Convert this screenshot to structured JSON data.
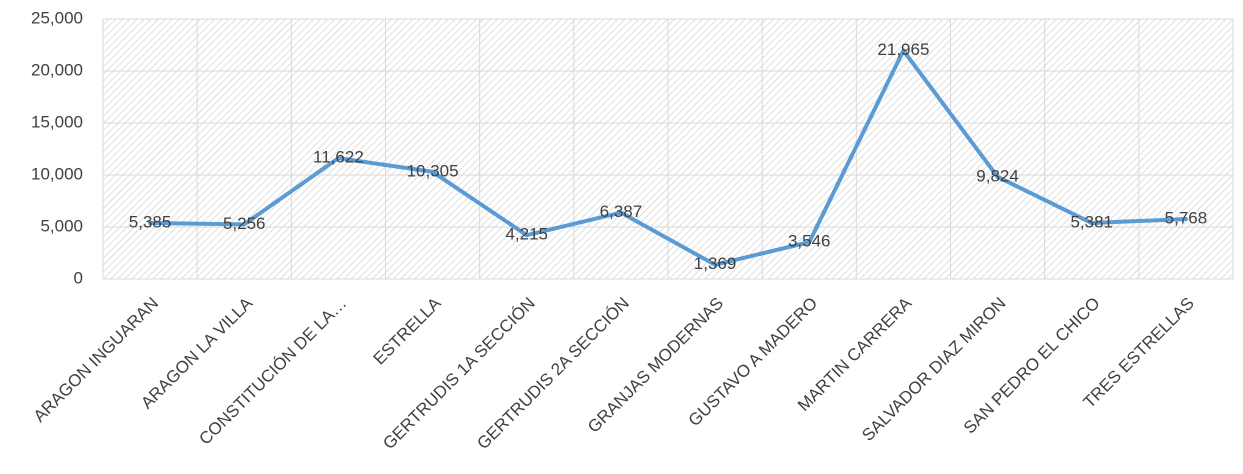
{
  "chart_data": {
    "type": "line",
    "categories": [
      "ARAGON INGUARAN",
      "ARAGON LA VILLA",
      "CONSTITUCIÓN DE LA…",
      "ESTRELLA",
      "GERTRUDIS 1A SECCIÓN",
      "GERTRUDIS 2A SECCIÓN",
      "GRANJAS MODERNAS",
      "GUSTAVO A MADERO",
      "MARTIN CARRERA",
      "SALVADOR DIAZ MIRON",
      "SAN PEDRO EL CHICO",
      "TRES ESTRELLAS"
    ],
    "values": [
      5385,
      5256,
      11622,
      10305,
      4215,
      6387,
      1369,
      3546,
      21965,
      9824,
      5381,
      5768
    ],
    "value_labels": [
      "5,385",
      "5,256",
      "11,622",
      "10,305",
      "4,215",
      "6,387",
      "1,369",
      "3,546",
      "21,965",
      "9,824",
      "5,381",
      "5,768"
    ],
    "color": "#5b9bd5",
    "ylim": [
      0,
      25000
    ],
    "yticks": [
      0,
      {
        "value": 5000,
        "label": "5,000"
      },
      {
        "value": 10000,
        "label": "10,000"
      },
      {
        "value": 15000,
        "label": "15,000"
      },
      {
        "value": 20000,
        "label": "20,000"
      },
      {
        "value": 25000,
        "label": "25,000"
      }
    ],
    "grid": true
  }
}
